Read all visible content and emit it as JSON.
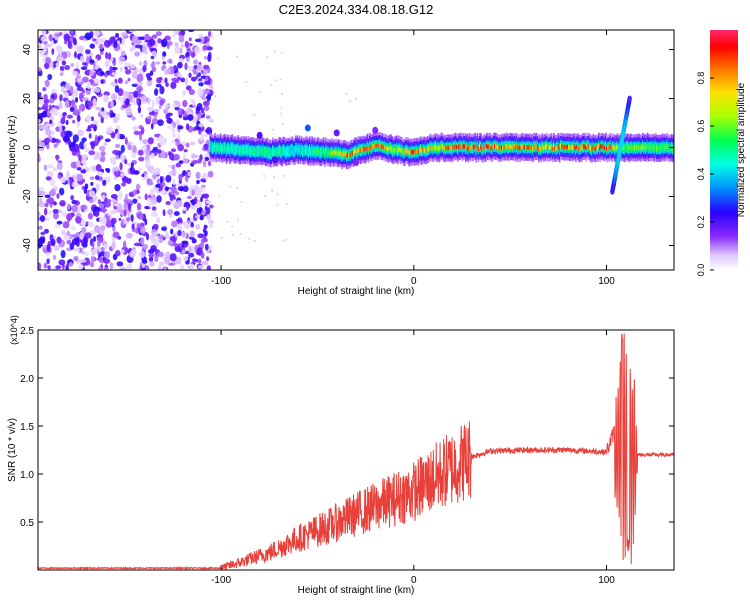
{
  "title": "C2E3.2024.334.08.18.G12",
  "chart_data": [
    {
      "type": "heatmap",
      "xlabel": "Height of straight line (km)",
      "ylabel": "Frequency (Hz)",
      "xlim": [
        -195,
        135
      ],
      "ylim": [
        -50,
        48
      ],
      "xticks": [
        -100,
        0,
        100
      ],
      "yticks": [
        -40,
        -20,
        0,
        20,
        40
      ],
      "colorbar": {
        "label": "Normalized spectral amplitude",
        "range": [
          0,
          1
        ],
        "ticks": [
          0.0,
          0.2,
          0.4,
          0.6,
          0.8
        ],
        "colormap": [
          "#ffffff",
          "#b15cff",
          "#5a00ff",
          "#0040ff",
          "#00d8ff",
          "#00ff7a",
          "#a8ff00",
          "#ffe000",
          "#ff8000",
          "#ff0000",
          "#ff2a6a"
        ]
      },
      "ridge": [
        {
          "x": -105,
          "freq": 0,
          "amp": 0.5
        },
        {
          "x": -90,
          "freq": -1,
          "amp": 0.45
        },
        {
          "x": -75,
          "freq": -2,
          "amp": 0.5
        },
        {
          "x": -60,
          "freq": -1,
          "amp": 0.4
        },
        {
          "x": -45,
          "freq": -2,
          "amp": 0.55
        },
        {
          "x": -35,
          "freq": -3,
          "amp": 0.8
        },
        {
          "x": -20,
          "freq": 1,
          "amp": 0.85
        },
        {
          "x": -10,
          "freq": -1,
          "amp": 0.6
        },
        {
          "x": 0,
          "freq": -2,
          "amp": 0.85
        },
        {
          "x": 10,
          "freq": 0,
          "amp": 0.7
        },
        {
          "x": 25,
          "freq": 0,
          "amp": 0.9
        },
        {
          "x": 50,
          "freq": 0,
          "amp": 0.8
        },
        {
          "x": 75,
          "freq": 0,
          "amp": 0.8
        },
        {
          "x": 100,
          "freq": 0,
          "amp": 0.85
        },
        {
          "x": 110,
          "freq": 0,
          "amp": 0.6
        },
        {
          "x": 135,
          "freq": 0,
          "amp": 0.5
        }
      ],
      "noise_region_xlim": [
        -195,
        -105
      ]
    },
    {
      "type": "line",
      "xlabel": "Height of straight line (km)",
      "ylabel": "SNR (10 * v/v)",
      "y_multiplier": "(x10^4)",
      "xlim": [
        -195,
        135
      ],
      "ylim": [
        0,
        2.5
      ],
      "xticks": [
        -100,
        0,
        100
      ],
      "yticks": [
        0.5,
        1.0,
        1.5,
        2.0,
        2.5
      ],
      "color": "#e8403a",
      "series_envelope": [
        {
          "x": -195,
          "y": 0.02
        },
        {
          "x": -100,
          "y": 0.02
        },
        {
          "x": -90,
          "y": 0.08
        },
        {
          "x": -75,
          "y": 0.18
        },
        {
          "x": -60,
          "y": 0.33
        },
        {
          "x": -45,
          "y": 0.45
        },
        {
          "x": -30,
          "y": 0.58
        },
        {
          "x": -15,
          "y": 0.7
        },
        {
          "x": 0,
          "y": 0.82
        },
        {
          "x": 10,
          "y": 0.95
        },
        {
          "x": 20,
          "y": 1.07
        },
        {
          "x": 30,
          "y": 1.18
        },
        {
          "x": 40,
          "y": 1.24
        },
        {
          "x": 60,
          "y": 1.25
        },
        {
          "x": 80,
          "y": 1.25
        },
        {
          "x": 100,
          "y": 1.23
        },
        {
          "x": 105,
          "y": 1.5
        },
        {
          "x": 108,
          "y": 2.48
        },
        {
          "x": 111,
          "y": 0.3
        },
        {
          "x": 113,
          "y": 2.05
        },
        {
          "x": 116,
          "y": 1.2
        },
        {
          "x": 135,
          "y": 1.2
        }
      ]
    }
  ]
}
